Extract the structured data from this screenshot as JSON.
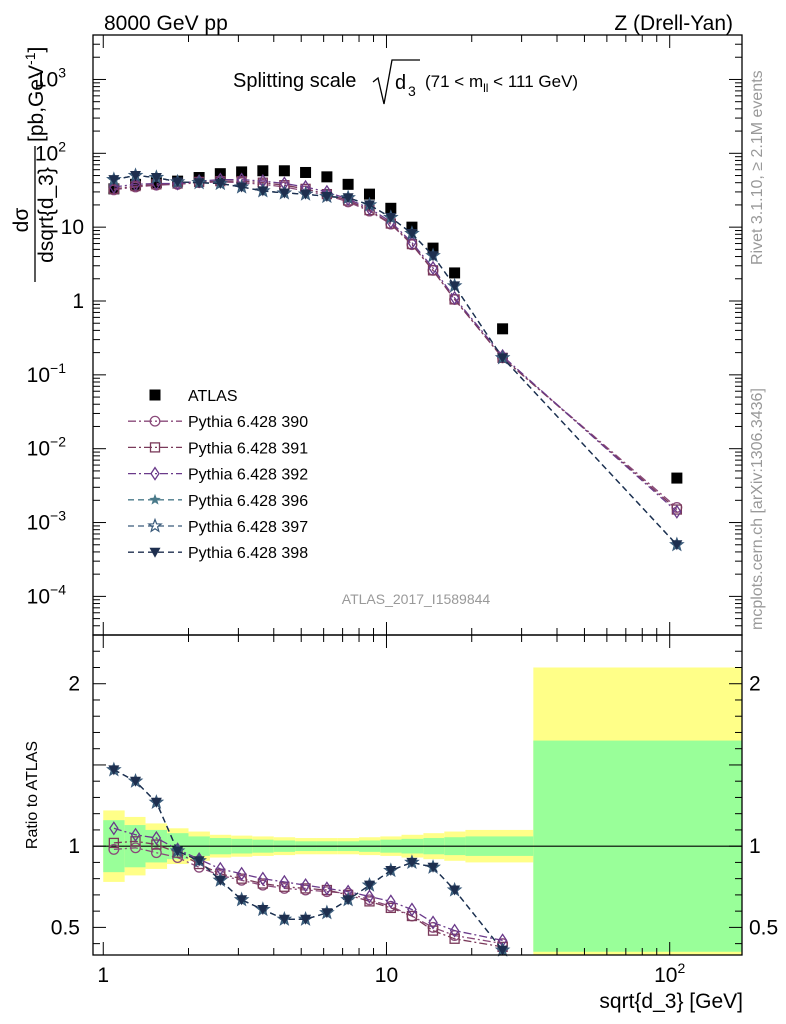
{
  "header": {
    "left": "8000 GeV pp",
    "right": "Z (Drell-Yan)"
  },
  "side": {
    "rivet": "Rivet 3.1.10, ≥ 2.1M events",
    "mcplots": "mcplots.cern.ch [arXiv:1306.3436]"
  },
  "chart_data": [
    {
      "type": "scatter",
      "title": "Splitting scale",
      "title_root": "d",
      "title_sub": "3",
      "title_cut_open": "(71 < m",
      "title_cut_sub": "ll",
      "title_cut_close": " < 111 GeV)",
      "ylabel_num": "dσ",
      "ylabel_den": "dsqrt{d_3}",
      "ylabel_unit": "[pb,GeV",
      "ylabel_unit_exp": "-1",
      "ylabel_unit_close": "]",
      "xscale": "log",
      "yscale": "log",
      "xlim": [
        0.92,
        180
      ],
      "ylim": [
        3e-05,
        4000
      ],
      "y_ticks": [
        {
          "v": 0.0001,
          "base": "10",
          "exp": "−4"
        },
        {
          "v": 0.001,
          "base": "10",
          "exp": "−3"
        },
        {
          "v": 0.01,
          "base": "10",
          "exp": "−2"
        },
        {
          "v": 0.1,
          "base": "10",
          "exp": "−1"
        },
        {
          "v": 1,
          "base": "1",
          "exp": ""
        },
        {
          "v": 10,
          "base": "10",
          "exp": ""
        },
        {
          "v": 100,
          "base": "10",
          "exp": "2"
        },
        {
          "v": 1000,
          "base": "10",
          "exp": "3"
        }
      ],
      "watermark": "ATLAS_2017_I1589844",
      "legend_position": "middle-left",
      "x": [
        1.09,
        1.3,
        1.54,
        1.83,
        2.18,
        2.59,
        3.08,
        3.66,
        4.36,
        5.18,
        6.16,
        7.32,
        8.71,
        10.36,
        12.3,
        14.6,
        17.4,
        25.7,
        106
      ],
      "series": [
        {
          "name": "ATLAS",
          "color": "#000000",
          "marker": "square-filled",
          "line": "none",
          "values": [
            33,
            38,
            40,
            42,
            47,
            53,
            56,
            58,
            58,
            55,
            48,
            38,
            28,
            18,
            10,
            5.2,
            2.4,
            0.42,
            0.004
          ]
        },
        {
          "name": "Pythia 6.428 390",
          "color": "#8a4a7a",
          "marker": "circle-open",
          "line": "dashdot",
          "values": [
            32,
            35,
            37,
            38,
            40,
            41,
            40,
            38,
            35,
            31,
            27,
            22,
            16.5,
            11,
            5.8,
            2.6,
            1.05,
            0.17,
            0.0016
          ]
        },
        {
          "name": "Pythia 6.428 391",
          "color": "#7a3a5a",
          "marker": "square-open",
          "line": "dashdot",
          "values": [
            33,
            36,
            38,
            39,
            41,
            42,
            42,
            40,
            37,
            33,
            28,
            23,
            17,
            11.2,
            5.9,
            2.6,
            1.05,
            0.17,
            0.0015
          ]
        },
        {
          "name": "Pythia 6.428 392",
          "color": "#6a3a8a",
          "marker": "diamond-open",
          "line": "dashdot",
          "values": [
            35,
            38,
            39,
            39,
            42,
            44,
            44,
            42,
            39,
            35,
            30,
            24,
            18,
            11.8,
            6.2,
            2.8,
            1.1,
            0.18,
            0.0014
          ]
        },
        {
          "name": "Pythia 6.428 396",
          "color": "#4a7a8a",
          "marker": "star-filled",
          "line": "dashed",
          "values": [
            44,
            50,
            47,
            41,
            40,
            39,
            35,
            31,
            29,
            28,
            26,
            25,
            20,
            13.5,
            8.2,
            4.1,
            1.6,
            0.17,
            0.0005
          ]
        },
        {
          "name": "Pythia 6.428 397",
          "color": "#3a5a7a",
          "marker": "star-open",
          "line": "dashed",
          "values": [
            44,
            50,
            47,
            41,
            40,
            39,
            35,
            31,
            29,
            28,
            26,
            25,
            20,
            13.5,
            8.2,
            4.1,
            1.6,
            0.17,
            0.0005
          ]
        },
        {
          "name": "Pythia 6.428 398",
          "color": "#1e2f4f",
          "marker": "triangle-down-filled",
          "line": "dashed",
          "values": [
            44,
            50,
            47,
            41,
            40,
            39,
            35,
            31,
            29,
            28,
            26,
            25,
            20,
            13.5,
            8.2,
            4.1,
            1.6,
            0.17,
            0.0005
          ]
        }
      ]
    },
    {
      "type": "scatter",
      "ylabel": "Ratio to ATLAS",
      "xlabel": "sqrt{d_3} [GeV]",
      "xscale": "log",
      "xlim": [
        0.92,
        180
      ],
      "ylim": [
        0.33,
        2.3
      ],
      "x_ticks": [
        {
          "v": 1,
          "label": "1"
        },
        {
          "v": 10,
          "label": "10"
        },
        {
          "v": 100,
          "label": "10",
          "exp": "2"
        }
      ],
      "y_ticks": [
        {
          "v": 0.5,
          "label": "0.5"
        },
        {
          "v": 1,
          "label": "1"
        },
        {
          "v": 2,
          "label": "2"
        }
      ],
      "band_edges": [
        1.0,
        1.19,
        1.41,
        1.68,
        2.0,
        2.38,
        2.83,
        3.36,
        4.0,
        4.76,
        5.66,
        6.73,
        8.0,
        9.51,
        11.3,
        13.5,
        16.0,
        19.0,
        33.0,
        180
      ],
      "band_inner": [
        0.16,
        0.13,
        0.1,
        0.08,
        0.06,
        0.05,
        0.045,
        0.04,
        0.035,
        0.03,
        0.03,
        0.03,
        0.035,
        0.04,
        0.045,
        0.05,
        0.055,
        0.06,
        0.65
      ],
      "band_outer": [
        0.22,
        0.18,
        0.14,
        0.11,
        0.09,
        0.07,
        0.065,
        0.06,
        0.055,
        0.05,
        0.05,
        0.05,
        0.055,
        0.06,
        0.07,
        0.08,
        0.09,
        0.1,
        1.1
      ],
      "band_inner_color": "#99ff99",
      "band_outer_color": "#ffff88",
      "x": [
        1.09,
        1.3,
        1.54,
        1.83,
        2.18,
        2.59,
        3.08,
        3.66,
        4.36,
        5.18,
        6.16,
        7.32,
        8.71,
        10.36,
        12.3,
        14.6,
        17.4,
        25.7
      ],
      "series": [
        {
          "name": "Pythia 6.428 390",
          "color": "#8a4a7a",
          "marker": "circle-open",
          "line": "dashdot",
          "values": [
            0.98,
            0.99,
            0.96,
            0.93,
            0.87,
            0.82,
            0.79,
            0.76,
            0.74,
            0.73,
            0.72,
            0.71,
            0.67,
            0.63,
            0.57,
            0.5,
            0.45,
            0.4
          ]
        },
        {
          "name": "Pythia 6.428 391",
          "color": "#7a3a5a",
          "marker": "square-open",
          "line": "dashdot",
          "values": [
            1.02,
            1.03,
            1.01,
            0.96,
            0.89,
            0.83,
            0.8,
            0.77,
            0.75,
            0.74,
            0.73,
            0.7,
            0.66,
            0.62,
            0.57,
            0.48,
            0.43,
            0.38
          ]
        },
        {
          "name": "Pythia 6.428 392",
          "color": "#6a3a8a",
          "marker": "diamond-open",
          "line": "dashdot",
          "values": [
            1.11,
            1.07,
            1.05,
            0.98,
            0.92,
            0.86,
            0.83,
            0.8,
            0.78,
            0.76,
            0.74,
            0.72,
            0.69,
            0.66,
            0.61,
            0.53,
            0.48,
            0.42
          ]
        },
        {
          "name": "Pythia 6.428 396",
          "color": "#4a7a8a",
          "marker": "star-filled",
          "line": "dashed",
          "values": [
            1.47,
            1.4,
            1.27,
            0.97,
            0.91,
            0.79,
            0.67,
            0.61,
            0.55,
            0.55,
            0.59,
            0.67,
            0.76,
            0.85,
            0.9,
            0.87,
            0.73,
            0.36
          ]
        },
        {
          "name": "Pythia 6.428 397",
          "color": "#3a5a7a",
          "marker": "star-open",
          "line": "dashed",
          "values": [
            1.47,
            1.4,
            1.27,
            0.97,
            0.91,
            0.79,
            0.67,
            0.61,
            0.55,
            0.55,
            0.59,
            0.67,
            0.76,
            0.85,
            0.9,
            0.87,
            0.73,
            0.36
          ]
        },
        {
          "name": "Pythia 6.428 398",
          "color": "#1e2f4f",
          "marker": "triangle-down-filled",
          "line": "dashed",
          "values": [
            1.47,
            1.4,
            1.27,
            0.97,
            0.91,
            0.79,
            0.67,
            0.61,
            0.55,
            0.55,
            0.59,
            0.67,
            0.76,
            0.85,
            0.9,
            0.87,
            0.73,
            0.36
          ]
        }
      ]
    }
  ]
}
